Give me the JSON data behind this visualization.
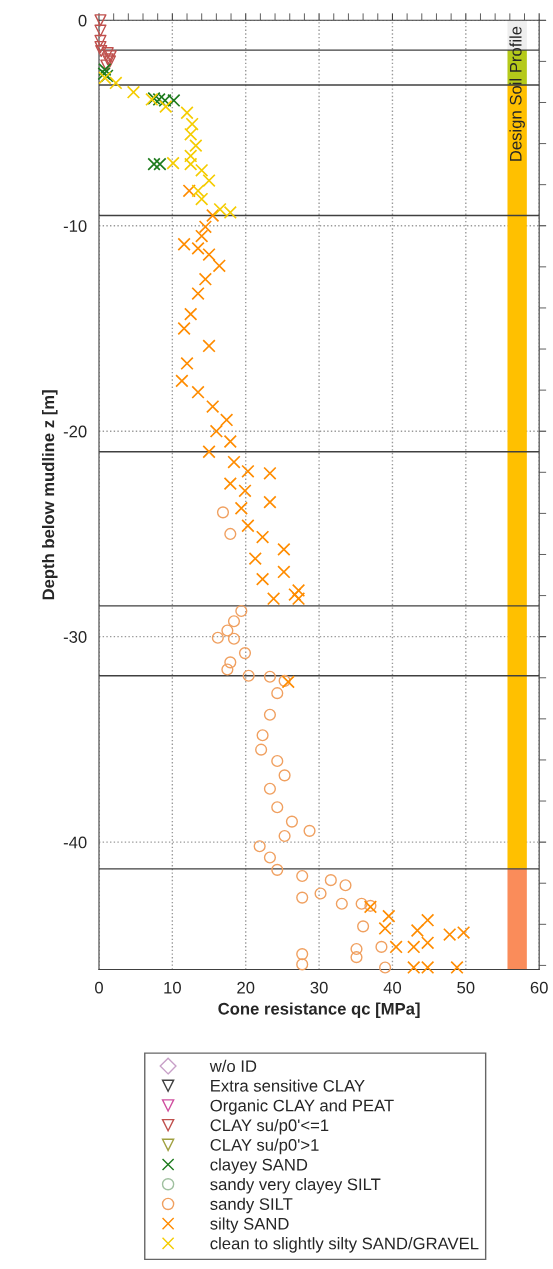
{
  "chart_data": {
    "type": "scatter",
    "xlabel": "Cone resistance qc [MPa]",
    "ylabel": "Depth below mudline z [m]",
    "xlim": [
      0,
      60
    ],
    "ylim": [
      -46.2,
      0
    ],
    "xticks": [
      0,
      {
        "value": 2,
        "label": null
      },
      {
        "value": 4,
        "label": null
      },
      {
        "value": 6,
        "label": null
      },
      {
        "value": 8,
        "label": null
      },
      10,
      {
        "value": 12,
        "label": null
      },
      {
        "value": 14,
        "label": null
      },
      {
        "value": 16,
        "label": null
      },
      {
        "value": 18,
        "label": null
      },
      20,
      {
        "value": 22,
        "label": null
      },
      {
        "value": 24,
        "label": null
      },
      {
        "value": 26,
        "label": null
      },
      {
        "value": 28,
        "label": null
      },
      30,
      {
        "value": 32,
        "label": null
      },
      {
        "value": 34,
        "label": null
      },
      {
        "value": 36,
        "label": null
      },
      {
        "value": 38,
        "label": null
      },
      40,
      {
        "value": 42,
        "label": null
      },
      {
        "value": 44,
        "label": null
      },
      {
        "value": 46,
        "label": null
      },
      {
        "value": 48,
        "label": null
      },
      50,
      {
        "value": 52,
        "label": null
      },
      {
        "value": 54,
        "label": null
      },
      {
        "value": 56,
        "label": null
      },
      {
        "value": 58,
        "label": null
      },
      60
    ],
    "yticks": [
      0,
      {
        "value": -2,
        "label": null
      },
      {
        "value": -4,
        "label": null
      },
      {
        "value": -6,
        "label": null
      },
      {
        "value": -8,
        "label": null
      },
      -10,
      {
        "value": -12,
        "label": null
      },
      {
        "value": -14,
        "label": null
      },
      {
        "value": -16,
        "label": null
      },
      {
        "value": -18,
        "label": null
      },
      -20,
      {
        "value": -22,
        "label": null
      },
      {
        "value": -24,
        "label": null
      },
      {
        "value": -26,
        "label": null
      },
      {
        "value": -28,
        "label": null
      },
      -30,
      {
        "value": -32,
        "label": null
      },
      {
        "value": -34,
        "label": null
      },
      {
        "value": -36,
        "label": null
      },
      {
        "value": -38,
        "label": null
      },
      -40,
      {
        "value": -42,
        "label": null
      },
      {
        "value": -44,
        "label": null
      },
      {
        "value": -46,
        "label": null
      }
    ],
    "grid": true,
    "legend": "bottom",
    "series": [
      {
        "name": "w/o ID",
        "marker": "diamond",
        "color": "#c8a0c8"
      },
      {
        "name": "Extra sensitive CLAY",
        "marker": "triangle",
        "color": "#404040"
      },
      {
        "name": "Organic CLAY and PEAT",
        "marker": "triangle",
        "color": "#d050a0"
      },
      {
        "name": "CLAY su/p0'<=1",
        "marker": "triangle",
        "color": "#c0504d",
        "x": [
          0.2,
          0.2,
          0.2,
          0.2,
          0.3,
          1.2,
          1.6,
          1.2,
          1.5,
          1.0
        ],
        "values": [
          0,
          -0.5,
          -1.0,
          -1.3,
          -1.5,
          -1.6,
          -1.75,
          -1.9,
          -2.0,
          -2.2
        ]
      },
      {
        "name": "CLAY su/p0'>1",
        "marker": "triangle",
        "color": "#a0a040"
      },
      {
        "name": "clayey SAND",
        "marker": "cross",
        "color": "#1e7b1e",
        "x": [
          0.8,
          0.7,
          1.1,
          7.5,
          8.2,
          9.0,
          10.2,
          7.5,
          8.3
        ],
        "values": [
          -2.4,
          -2.6,
          -2.7,
          -3.8,
          -3.85,
          -3.9,
          -3.9,
          -7.0,
          -7.0
        ]
      },
      {
        "name": "sandy very clayey SILT",
        "marker": "circle",
        "color": "#a0c0a0"
      },
      {
        "name": "sandy SILT",
        "marker": "circle",
        "color": "#f0a060",
        "x": [
          16.9,
          17.9,
          19.4,
          18.4,
          17.5,
          16.2,
          18.4,
          19.9,
          17.9,
          17.5,
          20.4,
          23.3,
          25.3,
          24.3,
          23.3,
          22.3,
          22.1,
          24.3,
          25.3,
          23.3,
          24.3,
          26.3,
          28.7,
          25.3,
          21.9,
          23.3,
          24.3,
          27.7,
          31.6,
          33.6,
          30.2,
          27.7,
          33.1,
          35.8,
          37.0,
          36.0,
          38.5,
          27.7,
          35.1,
          27.7,
          35.1,
          39.0
        ],
        "values": [
          -23.95,
          -25.0,
          -28.75,
          -29.25,
          -29.7,
          -30.05,
          -30.1,
          -30.8,
          -31.25,
          -31.6,
          -31.9,
          -31.95,
          -32.15,
          -32.75,
          -33.8,
          -34.8,
          -35.5,
          -36.05,
          -36.75,
          -37.4,
          -38.3,
          -39.0,
          -39.45,
          -39.7,
          -40.2,
          -40.75,
          -41.35,
          -41.65,
          -41.85,
          -42.1,
          -42.5,
          -42.7,
          -43.0,
          -43.0,
          -43.1,
          -44.1,
          -45.1,
          -45.45,
          -45.2,
          -45.95,
          -45.6,
          -46.1
        ]
      },
      {
        "name": "silty SAND",
        "marker": "cross",
        "color": "#ff8c00",
        "x": [
          12.3,
          15.5,
          14.5,
          14.0,
          11.6,
          13.5,
          15.0,
          16.4,
          14.5,
          13.5,
          12.5,
          11.6,
          15.0,
          12.0,
          11.3,
          13.5,
          15.5,
          17.4,
          16.0,
          17.9,
          15.0,
          18.4,
          20.3,
          23.3,
          17.9,
          19.9,
          23.3,
          19.4,
          20.3,
          22.3,
          25.2,
          21.3,
          25.2,
          22.3,
          27.2,
          23.8,
          27.2,
          26.7,
          25.8,
          37.0,
          39.5,
          39.0,
          44.8,
          43.4,
          47.8,
          49.7,
          44.8,
          40.5,
          42.9,
          42.9,
          44.8,
          48.8
        ],
        "values": [
          -8.3,
          -9.5,
          -10.05,
          -10.5,
          -10.9,
          -11.1,
          -11.4,
          -11.95,
          -12.6,
          -13.3,
          -14.3,
          -15.0,
          -15.85,
          -16.7,
          -17.55,
          -18.1,
          -18.8,
          -19.45,
          -20.0,
          -20.5,
          -21.0,
          -21.5,
          -21.95,
          -22.05,
          -22.55,
          -22.9,
          -23.45,
          -23.75,
          -24.6,
          -25.15,
          -25.75,
          -26.2,
          -26.85,
          -27.2,
          -27.75,
          -28.15,
          -28.15,
          -27.95,
          -32.2,
          -43.15,
          -43.6,
          -44.2,
          -43.8,
          -44.3,
          -44.5,
          -44.4,
          -44.9,
          -45.1,
          -45.1,
          -46.1,
          -46.1,
          -46.1
        ]
      },
      {
        "name": "clean to slightly silty SAND/GRAVEL",
        "marker": "cross",
        "color": "#f5cc00",
        "x": [
          0.8,
          2.3,
          4.7,
          7.2,
          9.1,
          12.0,
          12.7,
          12.5,
          13.2,
          12.5,
          10.1,
          12.5,
          14.0,
          15.0,
          13.5,
          14.0,
          16.5,
          17.9
        ],
        "values": [
          -2.8,
          -3.05,
          -3.5,
          -3.85,
          -4.2,
          -4.5,
          -5.05,
          -5.55,
          -6.1,
          -6.6,
          -6.95,
          -7.0,
          -7.3,
          -7.8,
          -8.3,
          -8.7,
          -9.2,
          -9.35
        ]
      }
    ],
    "ref_lines": [
      {
        "axis": "y",
        "value": -1.45,
        "color": "#404040"
      },
      {
        "axis": "y",
        "value": -3.15,
        "color": "#404040"
      },
      {
        "axis": "y",
        "value": -9.5,
        "color": "#404040"
      },
      {
        "axis": "y",
        "value": -21.0,
        "color": "#404040"
      },
      {
        "axis": "y",
        "value": -28.5,
        "color": "#404040"
      },
      {
        "axis": "y",
        "value": -31.9,
        "color": "#404040"
      },
      {
        "axis": "y",
        "value": -41.3,
        "color": "#404040"
      }
    ],
    "bands": [
      {
        "axis": "y",
        "from": 0,
        "to": -1.45,
        "color": "#eeeeee"
      },
      {
        "axis": "y",
        "from": -1.45,
        "to": -3.15,
        "color": "#b5c91a"
      },
      {
        "axis": "y",
        "from": -3.15,
        "to": -41.3,
        "color": "#ffc000"
      },
      {
        "axis": "y",
        "from": -41.3,
        "to": -46.2,
        "color": "#fa8c5a"
      }
    ],
    "annotations": [
      "Design Soil Profile"
    ]
  }
}
